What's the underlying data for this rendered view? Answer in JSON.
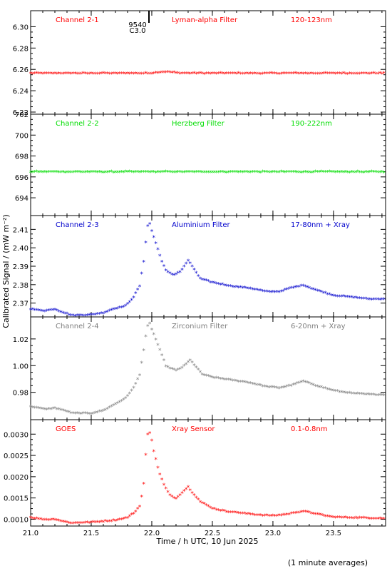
{
  "figure": {
    "xlabel": "Time / h UTC, 10 Jun 2025",
    "ylabel": "Calibrated Signal / (mW m⁻²)",
    "footnote": "(1 minute averages)",
    "flare_marker": {
      "line1": "9540",
      "line2": "C3.0",
      "time": 21.98
    }
  },
  "chart_data": [
    {
      "type": "scatter",
      "channel": "Channel 2-1",
      "filter": "Lyman-alpha Filter",
      "band": "120-123nm",
      "color": "#ff0000",
      "ylim": [
        6.218,
        6.315
      ],
      "yticks": [
        6.22,
        6.24,
        6.26,
        6.28,
        6.3
      ],
      "ytick_labels": [
        "6.22",
        "6.24",
        "6.26",
        "6.28",
        "6.30"
      ],
      "xlim": [
        21.0,
        23.93
      ],
      "profile": {
        "base": 6.256,
        "points": [
          [
            21.0,
            6.256
          ],
          [
            22.0,
            6.256
          ],
          [
            22.05,
            6.257
          ],
          [
            22.12,
            6.2575
          ],
          [
            22.2,
            6.2565
          ],
          [
            22.3,
            6.256
          ],
          [
            23.93,
            6.256
          ]
        ]
      }
    },
    {
      "type": "scatter",
      "channel": "Channel 2-2",
      "filter": "Herzberg Filter",
      "band": "190-222nm",
      "color": "#00dd00",
      "ylim": [
        692.3,
        702.0
      ],
      "yticks": [
        694,
        696,
        698,
        700,
        702
      ],
      "ytick_labels": [
        "694",
        "696",
        "698",
        "700",
        "702"
      ],
      "xlim": [
        21.0,
        23.93
      ],
      "profile": {
        "base": 696.45,
        "points": [
          [
            21.0,
            696.45
          ],
          [
            23.93,
            696.45
          ]
        ]
      }
    },
    {
      "type": "scatter",
      "channel": "Channel 2-3",
      "filter": "Aluminium Filter",
      "band": "17-80nm + Xray",
      "color": "#0000cc",
      "ylim": [
        2.3625,
        2.4175
      ],
      "yticks": [
        2.37,
        2.38,
        2.39,
        2.4,
        2.41
      ],
      "ytick_labels": [
        "2.37",
        "2.38",
        "2.39",
        "2.40",
        "2.41"
      ],
      "xlim": [
        21.0,
        23.93
      ],
      "profile": {
        "points": [
          [
            21.0,
            2.3665
          ],
          [
            21.12,
            2.3655
          ],
          [
            21.2,
            2.3665
          ],
          [
            21.28,
            2.3645
          ],
          [
            21.35,
            2.363
          ],
          [
            21.5,
            2.3635
          ],
          [
            21.6,
            2.3645
          ],
          [
            21.7,
            2.367
          ],
          [
            21.78,
            2.368
          ],
          [
            21.85,
            2.373
          ],
          [
            21.9,
            2.379
          ],
          [
            21.94,
            2.395
          ],
          [
            21.96,
            2.411
          ],
          [
            21.98,
            2.4135
          ],
          [
            22.0,
            2.409
          ],
          [
            22.04,
            2.401
          ],
          [
            22.08,
            2.393
          ],
          [
            22.12,
            2.387
          ],
          [
            22.18,
            2.385
          ],
          [
            22.24,
            2.387
          ],
          [
            22.3,
            2.393
          ],
          [
            22.34,
            2.389
          ],
          [
            22.4,
            2.383
          ],
          [
            22.5,
            2.381
          ],
          [
            22.65,
            2.379
          ],
          [
            22.8,
            2.378
          ],
          [
            22.95,
            2.376
          ],
          [
            23.05,
            2.376
          ],
          [
            23.15,
            2.378
          ],
          [
            23.25,
            2.3795
          ],
          [
            23.35,
            2.377
          ],
          [
            23.5,
            2.374
          ],
          [
            23.65,
            2.373
          ],
          [
            23.8,
            2.372
          ],
          [
            23.93,
            2.372
          ]
        ]
      }
    },
    {
      "type": "scatter",
      "channel": "Channel 2-4",
      "filter": "Zirconium Filter",
      "band": "6-20nm + Xray",
      "color": "#808080",
      "ylim": [
        0.9595,
        1.0365
      ],
      "yticks": [
        0.98,
        1.0,
        1.02
      ],
      "ytick_labels": [
        "0.98",
        "1.00",
        "1.02"
      ],
      "xlim": [
        21.0,
        23.93
      ],
      "profile": {
        "points": [
          [
            21.0,
            0.969
          ],
          [
            21.12,
            0.967
          ],
          [
            21.2,
            0.968
          ],
          [
            21.28,
            0.966
          ],
          [
            21.35,
            0.964
          ],
          [
            21.5,
            0.964
          ],
          [
            21.6,
            0.966
          ],
          [
            21.7,
            0.971
          ],
          [
            21.78,
            0.975
          ],
          [
            21.85,
            0.983
          ],
          [
            21.9,
            0.993
          ],
          [
            21.94,
            1.015
          ],
          [
            21.96,
            1.028
          ],
          [
            21.98,
            1.032
          ],
          [
            22.0,
            1.027
          ],
          [
            22.04,
            1.018
          ],
          [
            22.08,
            1.008
          ],
          [
            22.12,
            0.999
          ],
          [
            22.2,
            0.996
          ],
          [
            22.26,
            0.999
          ],
          [
            22.32,
            1.004
          ],
          [
            22.36,
            0.999
          ],
          [
            22.42,
            0.993
          ],
          [
            22.5,
            0.991
          ],
          [
            22.65,
            0.989
          ],
          [
            22.8,
            0.987
          ],
          [
            22.95,
            0.984
          ],
          [
            23.05,
            0.983
          ],
          [
            23.15,
            0.985
          ],
          [
            23.25,
            0.988
          ],
          [
            23.35,
            0.985
          ],
          [
            23.5,
            0.981
          ],
          [
            23.65,
            0.979
          ],
          [
            23.8,
            0.978
          ],
          [
            23.93,
            0.978
          ]
        ]
      }
    },
    {
      "type": "scatter",
      "channel": "GOES",
      "filter": "Xray Sensor",
      "band": "0.1-0.8nm",
      "color": "#ff0000",
      "ylim": [
        0.00084,
        0.00334
      ],
      "yticks": [
        0.001,
        0.0015,
        0.002,
        0.0025,
        0.003
      ],
      "ytick_labels": [
        "0.0010",
        "0.0015",
        "0.0020",
        "0.0025",
        "0.0030"
      ],
      "xlim": [
        21.0,
        23.93
      ],
      "profile": {
        "points": [
          [
            21.0,
            0.00103
          ],
          [
            21.12,
            0.00098
          ],
          [
            21.2,
            0.00099
          ],
          [
            21.3,
            0.00092
          ],
          [
            21.35,
            0.0009
          ],
          [
            21.5,
            0.00092
          ],
          [
            21.6,
            0.00094
          ],
          [
            21.7,
            0.00097
          ],
          [
            21.8,
            0.00103
          ],
          [
            21.86,
            0.00115
          ],
          [
            21.9,
            0.0013
          ],
          [
            21.93,
            0.0017
          ],
          [
            21.95,
            0.0025
          ],
          [
            21.97,
            0.00308
          ],
          [
            21.99,
            0.003
          ],
          [
            22.02,
            0.00255
          ],
          [
            22.06,
            0.0021
          ],
          [
            22.1,
            0.0018
          ],
          [
            22.15,
            0.00155
          ],
          [
            22.2,
            0.00148
          ],
          [
            22.26,
            0.00165
          ],
          [
            22.3,
            0.00175
          ],
          [
            22.34,
            0.0016
          ],
          [
            22.4,
            0.0014
          ],
          [
            22.5,
            0.00125
          ],
          [
            22.6,
            0.00118
          ],
          [
            22.7,
            0.00115
          ],
          [
            22.85,
            0.0011
          ],
          [
            23.0,
            0.00107
          ],
          [
            23.1,
            0.0011
          ],
          [
            23.25,
            0.00118
          ],
          [
            23.35,
            0.00112
          ],
          [
            23.5,
            0.00104
          ],
          [
            23.65,
            0.00103
          ],
          [
            23.8,
            0.00102
          ],
          [
            23.93,
            0.00101
          ]
        ]
      }
    }
  ],
  "xaxis": {
    "ticks": [
      21.0,
      21.5,
      22.0,
      22.5,
      23.0,
      23.5
    ],
    "tick_labels": [
      "21.0",
      "21.5",
      "22.0",
      "22.5",
      "23.0",
      "23.5"
    ]
  }
}
